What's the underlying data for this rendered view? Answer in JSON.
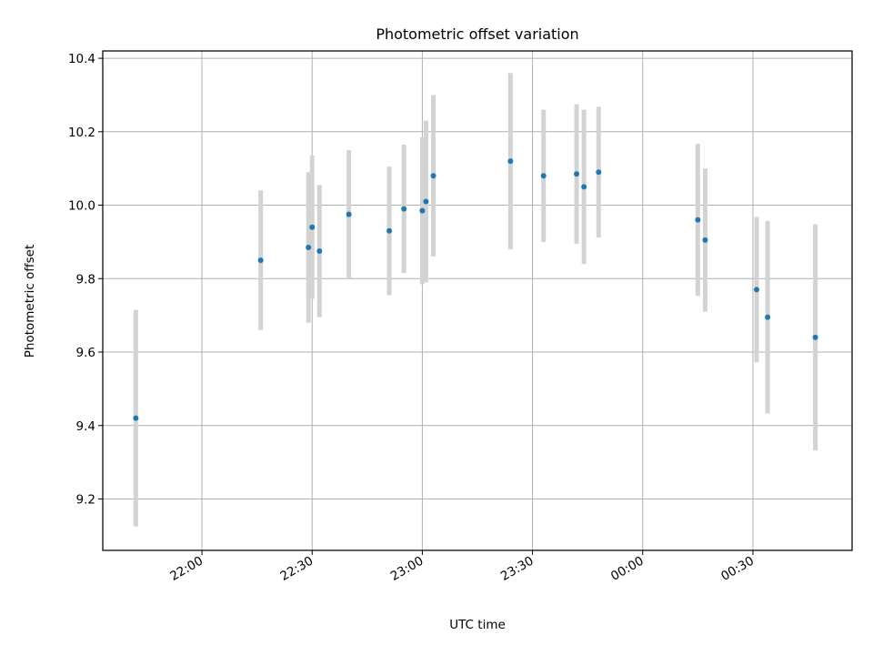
{
  "chart_data": {
    "type": "scatter",
    "title": "Photometric offset variation",
    "xlabel": "UTC time",
    "ylabel": "Photometric offset",
    "x_ticks": [
      "22:00",
      "22:30",
      "23:00",
      "23:30",
      "00:00",
      "00:30"
    ],
    "y_ticks": [
      "9.2",
      "9.4",
      "9.6",
      "9.8",
      "10.0",
      "10.2",
      "10.4"
    ],
    "xlim": [
      "21:33",
      "00:57"
    ],
    "ylim": [
      9.06,
      10.42
    ],
    "grid": true,
    "point_color": "#1f77b4",
    "errorbar_color": "#d3d3d3",
    "points": [
      {
        "t": "21:42",
        "y": 9.42,
        "err": 0.295
      },
      {
        "t": "22:16",
        "y": 9.85,
        "err": 0.19
      },
      {
        "t": "22:29",
        "y": 9.885,
        "err": 0.205
      },
      {
        "t": "22:30",
        "y": 9.94,
        "err": 0.195
      },
      {
        "t": "22:32",
        "y": 9.875,
        "err": 0.18
      },
      {
        "t": "22:40",
        "y": 9.975,
        "err": 0.175
      },
      {
        "t": "22:51",
        "y": 9.93,
        "err": 0.175
      },
      {
        "t": "22:55",
        "y": 9.99,
        "err": 0.175
      },
      {
        "t": "23:00",
        "y": 9.985,
        "err": 0.2
      },
      {
        "t": "23:01",
        "y": 10.01,
        "err": 0.22
      },
      {
        "t": "23:03",
        "y": 10.08,
        "err": 0.22
      },
      {
        "t": "23:24",
        "y": 10.12,
        "err": 0.24
      },
      {
        "t": "23:33",
        "y": 10.08,
        "err": 0.18
      },
      {
        "t": "23:42",
        "y": 10.085,
        "err": 0.19
      },
      {
        "t": "23:44",
        "y": 10.05,
        "err": 0.21
      },
      {
        "t": "23:48",
        "y": 10.09,
        "err": 0.178
      },
      {
        "t": "00:15",
        "y": 9.96,
        "err": 0.207
      },
      {
        "t": "00:17",
        "y": 9.905,
        "err": 0.195
      },
      {
        "t": "00:31",
        "y": 9.77,
        "err": 0.198
      },
      {
        "t": "00:34",
        "y": 9.695,
        "err": 0.262
      },
      {
        "t": "00:47",
        "y": 9.64,
        "err": 0.308
      }
    ]
  }
}
